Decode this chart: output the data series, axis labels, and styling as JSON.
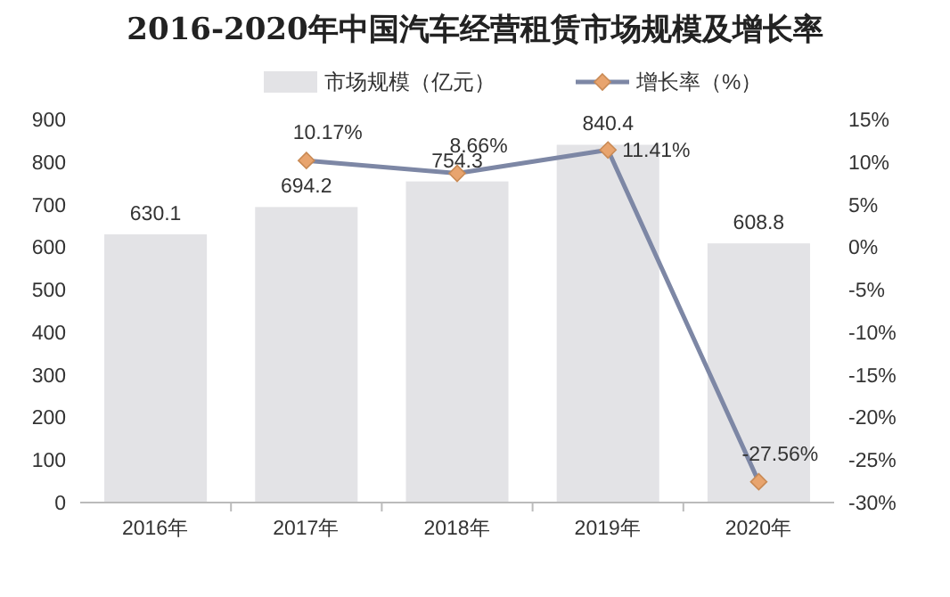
{
  "chart_data": {
    "type": "bar",
    "title": "2016-2020年中国汽车经营租赁市场规模及增长率",
    "categories": [
      "2016年",
      "2017年",
      "2018年",
      "2019年",
      "2020年"
    ],
    "series": [
      {
        "name": "市场规模（亿元）",
        "type": "bar",
        "color": "#e3e3e6",
        "values": [
          630.1,
          694.2,
          754.3,
          840.4,
          608.8
        ],
        "value_labels": [
          "630.1",
          "694.2",
          "754.3",
          "840.4",
          "608.8"
        ]
      },
      {
        "name": "增长率（%）",
        "type": "line",
        "axis": "y2",
        "color": "#7d87a5",
        "marker": "diamond",
        "values": [
          null,
          10.17,
          8.66,
          11.41,
          -27.56
        ],
        "value_labels": [
          null,
          "10.17%",
          "8.66%",
          "11.41%",
          "-27.56%"
        ]
      }
    ],
    "ylim": [
      0,
      900
    ],
    "yticks": [
      0,
      100,
      200,
      300,
      400,
      500,
      600,
      700,
      800,
      900
    ],
    "y2lim": [
      -30,
      15
    ],
    "y2ticks": [
      {
        "value": -30,
        "label": "-30%"
      },
      {
        "value": -25,
        "label": "-25%"
      },
      {
        "value": -20,
        "label": "-20%"
      },
      {
        "value": -15,
        "label": "-15%"
      },
      {
        "value": -10,
        "label": "-10%"
      },
      {
        "value": -5,
        "label": "-5%"
      },
      {
        "value": 0,
        "label": "0%"
      },
      {
        "value": 5,
        "label": "5%"
      },
      {
        "value": 10,
        "label": "10%"
      },
      {
        "value": 15,
        "label": "15%"
      }
    ],
    "legend": "top"
  }
}
